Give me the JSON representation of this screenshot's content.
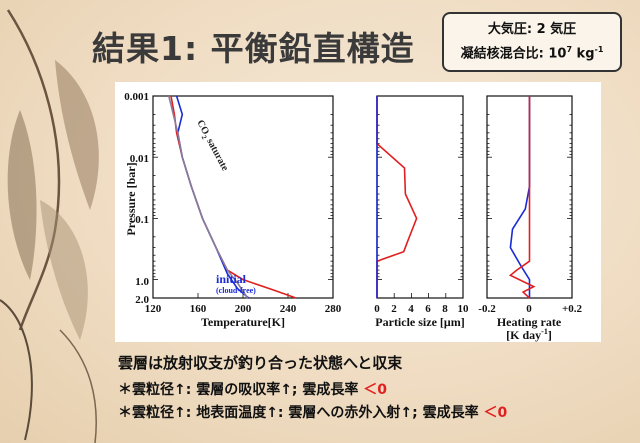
{
  "slide": {
    "title": "結果1: 平衡鉛直構造",
    "params": {
      "pressure_label": "大気圧",
      "pressure_value": "2",
      "pressure_unit": "気圧",
      "ratio_label": "凝結核混合比",
      "ratio_value": "10",
      "ratio_exp": "7",
      "ratio_unit": "kg",
      "ratio_unit_exp": "-1"
    },
    "summary": "雲層は放射収支が釣り合った状態へと収束",
    "bullets": [
      {
        "prefix": "＊雲粒径↑: 雲層の吸収率↑; 雲成長率",
        "result": "＜0"
      },
      {
        "prefix": "＊雲粒径↑: 地表面温度↑: 雲層への赤外入射↑; 雲成長率",
        "result": "＜0"
      }
    ]
  },
  "colors": {
    "cloud": "#e02020",
    "initial": "#1a2bd6",
    "co2": "#8a7d9a"
  },
  "chart_data": [
    {
      "type": "line",
      "xlabel": "Temperature[K]",
      "ylabel": "Pressure [bar]",
      "xlim": [
        120,
        280
      ],
      "ylim": [
        0.001,
        2.0
      ],
      "y_scale": "log-inverted",
      "x_ticks": [
        "120",
        "160",
        "200",
        "240",
        "280"
      ],
      "y_ticks": [
        "0.001",
        "0.01",
        "0.1",
        "1.0",
        "2.0"
      ],
      "annotations": {
        "co2": "CO",
        "co2_sub": "2",
        "co2_rest": " saturate",
        "initial": "initial",
        "initial_sub": "(cloud-free)"
      },
      "series": [
        {
          "key": "red",
          "points": [
            [
              136,
              0.001
            ],
            [
              139,
              0.002
            ],
            [
              141,
              0.004
            ],
            [
              146,
              0.01
            ],
            [
              154,
              0.03
            ],
            [
              164,
              0.1
            ],
            [
              176,
              0.3
            ],
            [
              186,
              0.7
            ],
            [
              200,
              1.0
            ],
            [
              228,
              1.5
            ],
            [
              247,
              2.0
            ]
          ]
        },
        {
          "key": "initial",
          "points": [
            [
              141,
              0.001
            ],
            [
              146,
              0.002
            ],
            [
              142,
              0.004
            ],
            [
              146,
              0.01
            ],
            [
              154,
              0.03
            ],
            [
              164,
              0.1
            ],
            [
              176,
              0.3
            ],
            [
              186,
              0.8
            ],
            [
              195,
              1.4
            ],
            [
              205,
              2.0
            ]
          ]
        },
        {
          "key": "co2",
          "points": [
            [
              134,
              0.001
            ],
            [
              138,
              0.002
            ],
            [
              142,
              0.004
            ],
            [
              146,
              0.01
            ],
            [
              154,
              0.03
            ],
            [
              164,
              0.1
            ],
            [
              176,
              0.3
            ],
            [
              186,
              0.7
            ],
            [
              196,
              1.2
            ],
            [
              204,
              2.0
            ]
          ]
        }
      ]
    },
    {
      "type": "line",
      "xlabel": "Particle size [μm]",
      "xlim": [
        0,
        10
      ],
      "y_scale": "log-inverted",
      "x_ticks": [
        "0",
        "2",
        "4",
        "6",
        "8",
        "10"
      ],
      "series": [
        {
          "key": "red",
          "points": [
            [
              0,
              0.001
            ],
            [
              0,
              0.006
            ],
            [
              3.2,
              0.015
            ],
            [
              3.3,
              0.04
            ],
            [
              4.6,
              0.1
            ],
            [
              3.5,
              0.25
            ],
            [
              3.1,
              0.35
            ],
            [
              0,
              0.5
            ],
            [
              0,
              2.0
            ]
          ]
        },
        {
          "key": "initial",
          "points": [
            [
              0,
              0.001
            ],
            [
              0,
              2.0
            ]
          ]
        }
      ]
    },
    {
      "type": "line",
      "xlabel": "Heating rate",
      "xlabel2": "[K day",
      "xlabel2_exp": "-1",
      "xlabel2_end": "]",
      "xlim": [
        -0.2,
        0.2
      ],
      "y_scale": "log-inverted",
      "x_ticks": [
        "-0.2",
        "0",
        "+0.2"
      ],
      "series": [
        {
          "key": "initial",
          "points": [
            [
              0,
              0.001
            ],
            [
              0,
              0.03
            ],
            [
              -0.02,
              0.07
            ],
            [
              -0.08,
              0.15
            ],
            [
              -0.09,
              0.3
            ],
            [
              -0.04,
              0.6
            ],
            [
              0,
              1.0
            ],
            [
              0,
              2.0
            ]
          ]
        },
        {
          "key": "red",
          "points": [
            [
              0,
              0.001
            ],
            [
              0,
              0.5
            ],
            [
              -0.06,
              0.7
            ],
            [
              -0.09,
              0.85
            ],
            [
              0.02,
              1.3
            ],
            [
              -0.03,
              1.6
            ],
            [
              0,
              2.0
            ]
          ]
        }
      ]
    }
  ]
}
